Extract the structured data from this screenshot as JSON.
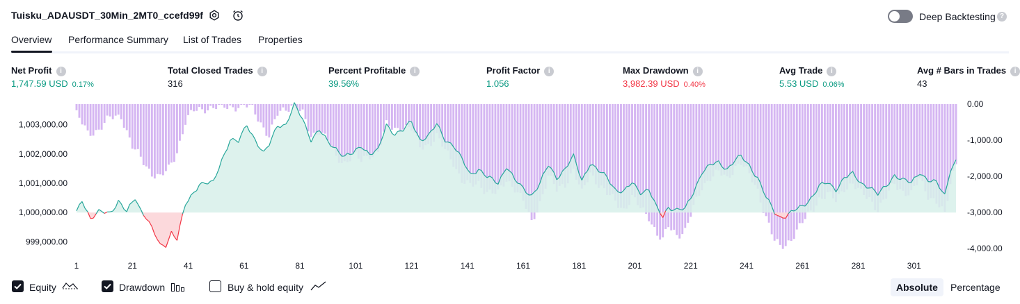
{
  "header": {
    "strategy_title": "Tuisku_ADAUSDT_30Min_2MT0_ccefd99f",
    "deep_backtesting_label": "Deep Backtesting",
    "deep_backtesting_enabled": false
  },
  "tabs": [
    {
      "label": "Overview",
      "active": true
    },
    {
      "label": "Performance Summary",
      "active": false
    },
    {
      "label": "List of Trades",
      "active": false
    },
    {
      "label": "Properties",
      "active": false
    }
  ],
  "metrics": [
    {
      "label": "Net Profit",
      "value": "1,747.59 USD",
      "sub": "0.17%",
      "tone": "green"
    },
    {
      "label": "Total Closed Trades",
      "value": "316",
      "sub": "",
      "tone": "dark"
    },
    {
      "label": "Percent Profitable",
      "value": "39.56%",
      "sub": "",
      "tone": "green"
    },
    {
      "label": "Profit Factor",
      "value": "1.056",
      "sub": "",
      "tone": "green"
    },
    {
      "label": "Max Drawdown",
      "value": "3,982.39 USD",
      "sub": "0.40%",
      "tone": "red"
    },
    {
      "label": "Avg Trade",
      "value": "5.53 USD",
      "sub": "0.06%",
      "tone": "green"
    },
    {
      "label": "Avg # Bars in Trades",
      "value": "43",
      "sub": "",
      "tone": "dark"
    }
  ],
  "chart_data": {
    "type": "area",
    "title": "",
    "colors": {
      "equity_line": "#26a69a",
      "equity_fill": "#d7f0ea",
      "equity_negative": "#f23645",
      "equity_negative_fill": "#fcd9dc",
      "drawdown": "#d5b6f2"
    },
    "left_axis": {
      "ticks": [
        "1,003,000.00",
        "1,002,000.00",
        "1,001,000.00",
        "1,000,000.00",
        "999,000.00"
      ],
      "tick_values": [
        1003000,
        1002000,
        1001000,
        1000000,
        999000
      ],
      "range": [
        998750,
        1003700
      ]
    },
    "right_axis": {
      "ticks": [
        "0.00",
        "-1,000.00",
        "-2,000.00",
        "-3,000.00",
        "-4,000.00"
      ],
      "tick_values": [
        0,
        -1000,
        -2000,
        -3000,
        -4000
      ],
      "range": [
        -4000,
        0
      ]
    },
    "x_ticks": [
      "1",
      "21",
      "41",
      "61",
      "81",
      "101",
      "121",
      "141",
      "161",
      "181",
      "201",
      "221",
      "241",
      "261",
      "281",
      "301"
    ],
    "x_range": [
      1,
      316
    ],
    "baseline": 1000000,
    "series": [
      {
        "name": "Equity",
        "anchors": [
          [
            1,
            1000000
          ],
          [
            3,
            1000450
          ],
          [
            6,
            999800
          ],
          [
            9,
            1000000
          ],
          [
            13,
            1000000
          ],
          [
            16,
            1000400
          ],
          [
            19,
            1000000
          ],
          [
            22,
            1000500
          ],
          [
            24,
            1000100
          ],
          [
            26,
            999850
          ],
          [
            29,
            999250
          ],
          [
            31,
            998850
          ],
          [
            33,
            998900
          ],
          [
            35,
            999350
          ],
          [
            37,
            999100
          ],
          [
            40,
            1000250
          ],
          [
            45,
            1001000
          ],
          [
            50,
            1001000
          ],
          [
            53,
            1001800
          ],
          [
            56,
            1002500
          ],
          [
            59,
            1002400
          ],
          [
            62,
            1003000
          ],
          [
            65,
            1002500
          ],
          [
            68,
            1002000
          ],
          [
            70,
            1002300
          ],
          [
            73,
            1003000
          ],
          [
            76,
            1003000
          ],
          [
            79,
            1003650
          ],
          [
            82,
            1003200
          ],
          [
            85,
            1002500
          ],
          [
            88,
            1002800
          ],
          [
            91,
            1002400
          ],
          [
            94,
            1002200
          ],
          [
            97,
            1001900
          ],
          [
            100,
            1002000
          ],
          [
            103,
            1002300
          ],
          [
            106,
            1002000
          ],
          [
            109,
            1002100
          ],
          [
            112,
            1003000
          ],
          [
            115,
            1002700
          ],
          [
            118,
            1002800
          ],
          [
            121,
            1003100
          ],
          [
            124,
            1002500
          ],
          [
            127,
            1002600
          ],
          [
            130,
            1003000
          ],
          [
            133,
            1002500
          ],
          [
            136,
            1002300
          ],
          [
            139,
            1001800
          ],
          [
            142,
            1001300
          ],
          [
            145,
            1001500
          ],
          [
            148,
            1001200
          ],
          [
            152,
            1001000
          ],
          [
            155,
            1001600
          ],
          [
            158,
            1001100
          ],
          [
            161,
            1000800
          ],
          [
            164,
            1000600
          ],
          [
            167,
            1001000
          ],
          [
            170,
            1001600
          ],
          [
            173,
            1001200
          ],
          [
            176,
            1001500
          ],
          [
            179,
            1001900
          ],
          [
            182,
            1001100
          ],
          [
            185,
            1001700
          ],
          [
            188,
            1001400
          ],
          [
            191,
            1001200
          ],
          [
            194,
            1000800
          ],
          [
            197,
            1000700
          ],
          [
            200,
            1001000
          ],
          [
            203,
            1000700
          ],
          [
            206,
            1000800
          ],
          [
            209,
            1000100
          ],
          [
            211,
            999850
          ],
          [
            213,
            1000200
          ],
          [
            216,
            1000100
          ],
          [
            219,
            1000100
          ],
          [
            222,
            1000700
          ],
          [
            225,
            1001400
          ],
          [
            228,
            1001600
          ],
          [
            231,
            1001700
          ],
          [
            234,
            1001500
          ],
          [
            237,
            1001800
          ],
          [
            239,
            1001900
          ],
          [
            242,
            1001600
          ],
          [
            245,
            1001200
          ],
          [
            248,
            1000500
          ],
          [
            251,
            1000000
          ],
          [
            253,
            999850
          ],
          [
            255,
            999900
          ],
          [
            258,
            1000050
          ],
          [
            261,
            1000200
          ],
          [
            264,
            1000500
          ],
          [
            267,
            1000900
          ],
          [
            270,
            1001000
          ],
          [
            273,
            1000800
          ],
          [
            276,
            1001200
          ],
          [
            279,
            1001300
          ],
          [
            282,
            1001000
          ],
          [
            285,
            1000900
          ],
          [
            288,
            1000600
          ],
          [
            291,
            1000900
          ],
          [
            294,
            1001300
          ],
          [
            297,
            1001100
          ],
          [
            300,
            1001000
          ],
          [
            303,
            1001400
          ],
          [
            306,
            1001100
          ],
          [
            309,
            1001000
          ],
          [
            312,
            1000600
          ],
          [
            314,
            1001500
          ],
          [
            316,
            1001750
          ]
        ]
      },
      {
        "name": "Drawdown",
        "anchors": [
          [
            1,
            -300
          ],
          [
            5,
            -800
          ],
          [
            9,
            -700
          ],
          [
            13,
            -400
          ],
          [
            17,
            -300
          ],
          [
            21,
            -1200
          ],
          [
            25,
            -1600
          ],
          [
            28,
            -1900
          ],
          [
            31,
            -2050
          ],
          [
            34,
            -1800
          ],
          [
            37,
            -1300
          ],
          [
            40,
            -500
          ],
          [
            43,
            -200
          ],
          [
            47,
            -100
          ],
          [
            52,
            -100
          ],
          [
            56,
            -60
          ],
          [
            60,
            -50
          ],
          [
            64,
            -100
          ],
          [
            67,
            -500
          ],
          [
            70,
            -900
          ],
          [
            73,
            -300
          ],
          [
            76,
            -100
          ],
          [
            79,
            0
          ],
          [
            82,
            -300
          ],
          [
            85,
            -900
          ],
          [
            88,
            -700
          ],
          [
            91,
            -1000
          ],
          [
            94,
            -1500
          ],
          [
            97,
            -1600
          ],
          [
            100,
            -1400
          ],
          [
            103,
            -1600
          ],
          [
            106,
            -1400
          ],
          [
            109,
            -1300
          ],
          [
            112,
            -600
          ],
          [
            115,
            -700
          ],
          [
            118,
            -600
          ],
          [
            121,
            -700
          ],
          [
            124,
            -1200
          ],
          [
            127,
            -1100
          ],
          [
            130,
            -900
          ],
          [
            133,
            -1300
          ],
          [
            136,
            -1600
          ],
          [
            139,
            -2100
          ],
          [
            142,
            -2300
          ],
          [
            145,
            -2200
          ],
          [
            148,
            -2400
          ],
          [
            152,
            -2500
          ],
          [
            155,
            -2100
          ],
          [
            158,
            -2300
          ],
          [
            161,
            -2700
          ],
          [
            164,
            -3300
          ],
          [
            167,
            -2700
          ],
          [
            170,
            -2000
          ],
          [
            173,
            -2400
          ],
          [
            176,
            -2200
          ],
          [
            179,
            -1800
          ],
          [
            182,
            -2500
          ],
          [
            185,
            -1900
          ],
          [
            188,
            -2200
          ],
          [
            191,
            -2500
          ],
          [
            194,
            -2700
          ],
          [
            197,
            -2900
          ],
          [
            200,
            -2600
          ],
          [
            203,
            -2900
          ],
          [
            206,
            -3100
          ],
          [
            209,
            -3600
          ],
          [
            211,
            -3800
          ],
          [
            213,
            -3400
          ],
          [
            216,
            -3600
          ],
          [
            219,
            -3500
          ],
          [
            222,
            -2900
          ],
          [
            225,
            -2300
          ],
          [
            228,
            -2000
          ],
          [
            231,
            -1900
          ],
          [
            234,
            -2100
          ],
          [
            237,
            -1700
          ],
          [
            239,
            -1600
          ],
          [
            242,
            -2000
          ],
          [
            245,
            -2400
          ],
          [
            248,
            -3100
          ],
          [
            251,
            -3800
          ],
          [
            253,
            -3980
          ],
          [
            255,
            -3900
          ],
          [
            258,
            -3600
          ],
          [
            261,
            -3300
          ],
          [
            264,
            -3000
          ],
          [
            267,
            -2600
          ],
          [
            270,
            -2500
          ],
          [
            273,
            -2700
          ],
          [
            276,
            -2300
          ],
          [
            279,
            -2200
          ],
          [
            282,
            -2500
          ],
          [
            285,
            -2600
          ],
          [
            288,
            -2900
          ],
          [
            291,
            -2600
          ],
          [
            294,
            -2200
          ],
          [
            297,
            -2400
          ],
          [
            300,
            -2500
          ],
          [
            303,
            -2100
          ],
          [
            306,
            -2500
          ],
          [
            309,
            -2700
          ],
          [
            312,
            -3100
          ],
          [
            314,
            -2200
          ],
          [
            316,
            -1600
          ]
        ]
      }
    ]
  },
  "legend": {
    "equity": {
      "label": "Equity",
      "checked": true
    },
    "drawdown": {
      "label": "Drawdown",
      "checked": true
    },
    "buy_hold": {
      "label": "Buy & hold equity",
      "checked": false
    }
  },
  "view_modes": {
    "absolute": "Absolute",
    "percentage": "Percentage",
    "selected": "Absolute"
  }
}
